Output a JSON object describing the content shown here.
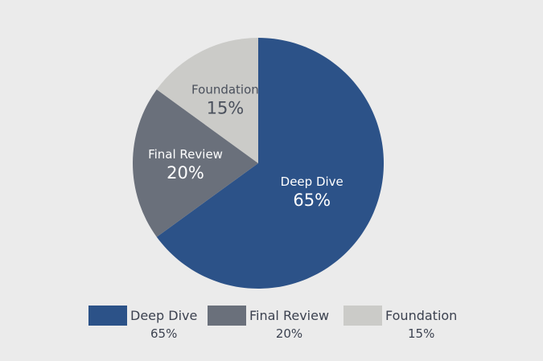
{
  "chart_data": {
    "type": "pie",
    "slices": [
      {
        "label": "Deep Dive",
        "value": 65,
        "value_label": "65%",
        "color": "#2c5288",
        "text_color": "#ffffff"
      },
      {
        "label": "Final Review",
        "value": 20,
        "value_label": "20%",
        "color": "#6a707b",
        "text_color": "#ffffff"
      },
      {
        "label": "Foundation",
        "value": 15,
        "value_label": "15%",
        "color": "#cbcbc8",
        "text_color": "#4a505c"
      }
    ],
    "start_angle_deg": 0,
    "direction": "clockwise",
    "legend_position": "bottom",
    "background": "#ebebeb"
  }
}
